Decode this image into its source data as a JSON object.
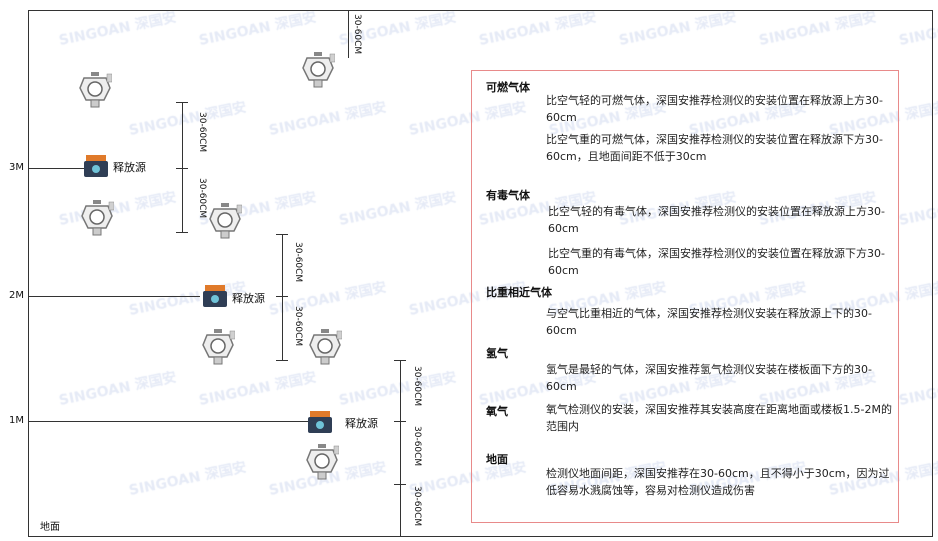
{
  "watermark": "SINGOAN 深国安",
  "levels": {
    "m3": "3M",
    "m2": "2M",
    "m1": "1M",
    "ground": "地面"
  },
  "source_label": "释放源",
  "dimension": "30-60CM",
  "info": {
    "sections": [
      {
        "title": "可燃气体",
        "paras": [
          "比空气轻的可燃气体，深国安推荐检测仪的安装位置在释放源上方30-60cm",
          "比空气重的可燃气体，深国安推荐检测仪的安装位置在释放源下方30-60cm，且地面间距不低于30cm"
        ]
      },
      {
        "title": "有毒气体",
        "paras": [
          "比空气轻的有毒气体，深国安推荐检测仪的安装位置在释放源上方30-60cm",
          "比空气重的有毒气体，深国安推荐检测仪的安装位置在释放源下方30-60cm"
        ]
      },
      {
        "title": "比重相近气体",
        "paras": [
          "与空气比重相近的气体，深国安推荐检测仪安装在释放源上下的30-60cm"
        ]
      },
      {
        "title": "氢气",
        "paras": [
          "氢气是最轻的气体，深国安推荐氢气检测仪安装在楼板面下方的30-60cm"
        ]
      },
      {
        "title": "氧气",
        "paras": [
          "氧气检测仪的安装，深国安推荐其安装高度在距离地面或楼板1.5-2M的范围内"
        ]
      },
      {
        "title": "地面",
        "paras": [
          "检测仪地面间距，深国安推荐在30-60cm，且不得小于30cm，因为过低容易水溅腐蚀等，容易对检测仪造成伤害"
        ]
      }
    ]
  }
}
